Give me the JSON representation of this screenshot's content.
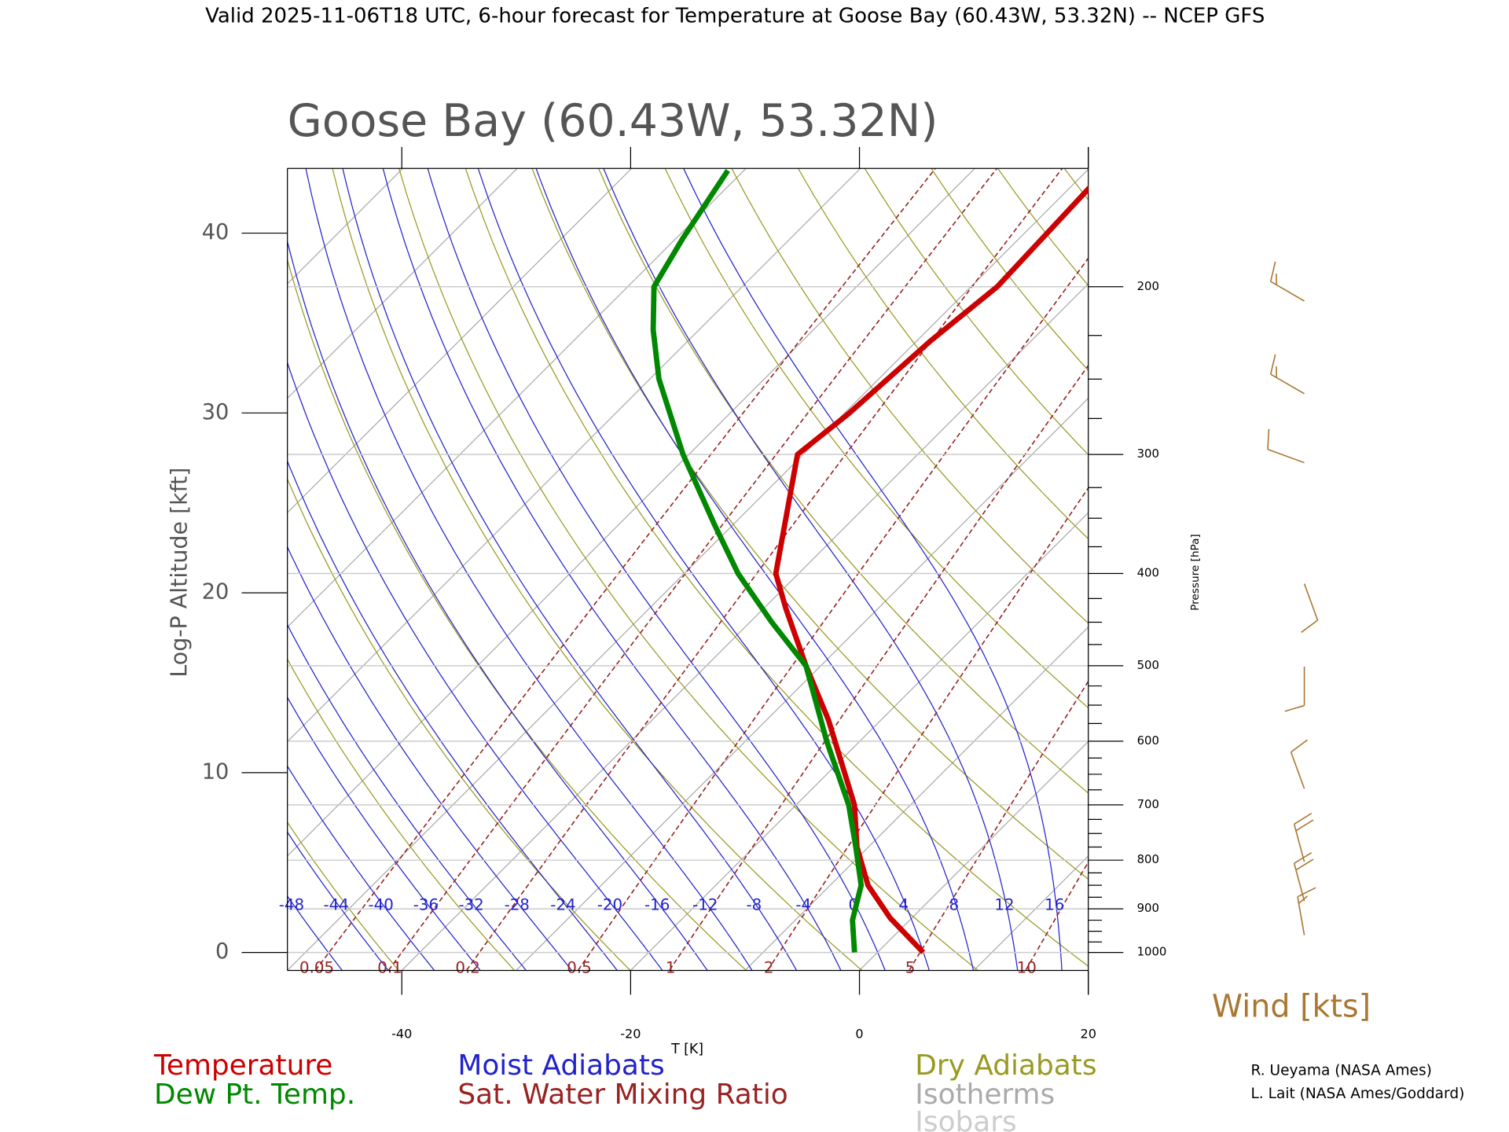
{
  "title": "Valid 2025-11-06T18 UTC, 6-hour forecast for Temperature at Goose Bay (60.43W, 53.32N) -- NCEP GFS",
  "chart_data": {
    "type": "skewt",
    "title": "Goose Bay (60.43W, 53.32N)",
    "y_label": "Log-P Altitude [kft]",
    "x_label": "T [K]",
    "y2_label": "Pressure [hPa]",
    "xlim": [
      -50,
      20
    ],
    "xticks": [
      -40,
      -20,
      0,
      20
    ],
    "ylim": [
      -1,
      43.6
    ],
    "yticks": [
      0,
      10,
      20,
      30,
      40
    ],
    "y2ticks": [
      1000,
      900,
      800,
      700,
      600,
      500,
      400,
      300,
      200
    ],
    "series": [
      {
        "name": "Temperature",
        "color": "#cc0000",
        "pressure": [
          1000,
          920,
          850,
          775,
          700,
          570,
          500,
          435,
          400,
          300,
          272,
          228,
          200,
          157
        ],
        "values": [
          4.0,
          -1.9,
          -6.7,
          -11.0,
          -14.9,
          -24.6,
          -31.3,
          -38.1,
          -42.0,
          -50.5,
          -49.6,
          -48.8,
          -47.7,
          -48.3
        ]
      },
      {
        "name": "Dew Pt. Temp.",
        "color": "#008800",
        "pressure": [
          1000,
          925,
          850,
          775,
          700,
          600,
          500,
          450,
          400,
          355,
          300,
          250,
          222,
          200,
          178,
          151
        ],
        "values": [
          -2.0,
          -5.0,
          -7.3,
          -11.1,
          -15.4,
          -22.9,
          -31.3,
          -38.1,
          -45.3,
          -51.7,
          -60.5,
          -69.2,
          -74.0,
          -77.7,
          -79.4,
          -81.4
        ]
      }
    ],
    "overlays": [
      {
        "name": "Moist Adiabats",
        "color": "#2222cc",
        "values": [
          -48,
          -44,
          -40,
          -36,
          -32,
          -28,
          -24,
          -20,
          -16,
          -12,
          -8,
          -4,
          0,
          4,
          8,
          12,
          16
        ]
      },
      {
        "name": "Sat. Water Mixing Ratio",
        "color": "#992222",
        "values": [
          0.05,
          0.1,
          0.2,
          0.5,
          1,
          2,
          5,
          10
        ]
      },
      {
        "name": "Dry Adiabats",
        "color": "#999922"
      },
      {
        "name": "Isotherms",
        "color": "#aaaaaa"
      },
      {
        "name": "Isobars",
        "color": "#cccccc"
      }
    ],
    "wind": {
      "label": "Wind [kts]",
      "color": "#aa7733",
      "pressure": [
        207,
        259,
        306,
        410,
        501,
        673,
        803,
        883,
        959
      ],
      "speed": [
        15,
        15,
        10,
        10,
        10,
        10,
        20,
        20,
        15
      ],
      "direction": [
        300,
        300,
        290,
        160,
        180,
        340,
        345,
        345,
        350
      ]
    },
    "credits": [
      "R. Ueyama (NASA Ames)",
      "L. Lait (NASA Ames/Goddard)"
    ]
  }
}
